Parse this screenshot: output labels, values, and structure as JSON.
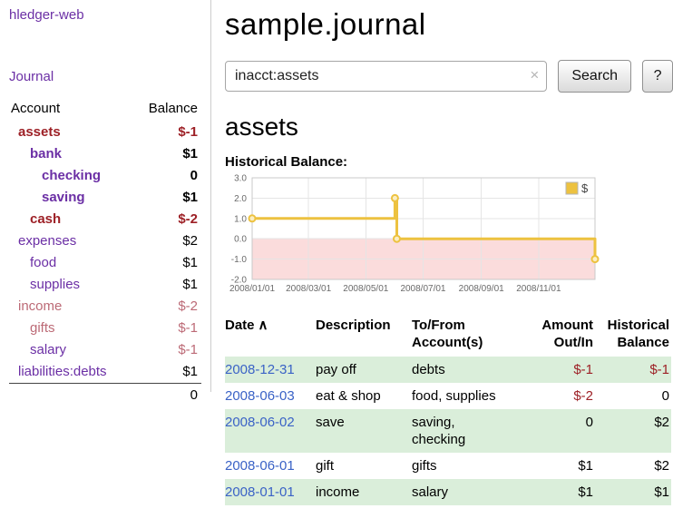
{
  "colors": {
    "accent_purple": "#6b2fa5",
    "negative_red": "#9d2026",
    "negative_rose": "#bc6a76",
    "link_blue": "#3a62c6",
    "stripe_green": "#daeeda",
    "chart_line": "#edc240",
    "chart_negative_region": "#fbdcdc"
  },
  "sidebar": {
    "app_title": "hledger-web",
    "journal_link": "Journal",
    "accounts": {
      "header_account": "Account",
      "header_balance": "Balance",
      "rows": [
        {
          "name": "assets",
          "balance": "$-1",
          "indent": 0,
          "bold": true,
          "name_style": "neg",
          "bal_style": "neg"
        },
        {
          "name": "bank",
          "balance": "$1",
          "indent": 1,
          "bold": true,
          "name_style": "link",
          "bal_style": ""
        },
        {
          "name": "checking",
          "balance": "0",
          "indent": 2,
          "bold": true,
          "name_style": "link",
          "bal_style": ""
        },
        {
          "name": "saving",
          "balance": "$1",
          "indent": 2,
          "bold": true,
          "name_style": "link",
          "bal_style": ""
        },
        {
          "name": "cash",
          "balance": "$-2",
          "indent": 1,
          "bold": true,
          "name_style": "neg",
          "bal_style": "neg"
        },
        {
          "name": "expenses",
          "balance": "$2",
          "indent": 0,
          "bold": false,
          "name_style": "link",
          "bal_style": ""
        },
        {
          "name": "food",
          "balance": "$1",
          "indent": 1,
          "bold": false,
          "name_style": "link",
          "bal_style": ""
        },
        {
          "name": "supplies",
          "balance": "$1",
          "indent": 1,
          "bold": false,
          "name_style": "link",
          "bal_style": ""
        },
        {
          "name": "income",
          "balance": "$-2",
          "indent": 0,
          "bold": false,
          "name_style": "negpale",
          "bal_style": "negpale"
        },
        {
          "name": "gifts",
          "balance": "$-1",
          "indent": 1,
          "bold": false,
          "name_style": "negpale",
          "bal_style": "negpale"
        },
        {
          "name": "salary",
          "balance": "$-1",
          "indent": 1,
          "bold": false,
          "name_style": "link",
          "bal_style": "negpale"
        },
        {
          "name": "liabilities:debts",
          "balance": "$1",
          "indent": 0,
          "bold": false,
          "name_style": "link",
          "bal_style": ""
        }
      ],
      "total": "0"
    }
  },
  "main": {
    "title": "sample.journal",
    "search": {
      "value": "inacct:assets",
      "clear_icon": "×",
      "button_label": "Search",
      "help_label": "?"
    },
    "account_heading": "assets",
    "chart_title": "Historical Balance:"
  },
  "chart_data": {
    "type": "line",
    "step": true,
    "title": "Historical Balance",
    "ylim": [
      -2,
      3
    ],
    "xlim_days": [
      0,
      365
    ],
    "y_ticks": [
      3.0,
      2.0,
      1.0,
      0.0,
      -1.0,
      -2.0
    ],
    "x_ticks": [
      {
        "day": 0,
        "label": "2008/01/01"
      },
      {
        "day": 60,
        "label": "2008/03/01"
      },
      {
        "day": 121,
        "label": "2008/05/01"
      },
      {
        "day": 182,
        "label": "2008/07/01"
      },
      {
        "day": 244,
        "label": "2008/09/01"
      },
      {
        "day": 305,
        "label": "2008/11/01"
      }
    ],
    "negative_region_color": "#fbdcdc",
    "legend_position": "top-right",
    "series": [
      {
        "name": "$",
        "color": "#edc240",
        "points": [
          [
            0,
            1
          ],
          [
            152,
            1
          ],
          [
            152,
            2
          ],
          [
            154,
            2
          ],
          [
            154,
            0
          ],
          [
            365,
            0
          ],
          [
            365,
            -1
          ]
        ],
        "markers": [
          [
            0,
            1
          ],
          [
            152,
            2
          ],
          [
            154,
            0
          ],
          [
            365,
            -1
          ]
        ]
      }
    ]
  },
  "register": {
    "headers": {
      "date": "Date",
      "sort_icon": "∧",
      "description": "Description",
      "account": "To/From Account(s)",
      "amount": "Amount Out/In",
      "balance": "Historical Balance"
    },
    "rows": [
      {
        "date": "2008-12-31",
        "description": "pay off",
        "account_lines": [
          "debts"
        ],
        "amount": "$-1",
        "amount_neg": true,
        "balance": "$-1",
        "balance_neg": true,
        "shade": true
      },
      {
        "date": "2008-06-03",
        "description": "eat & shop",
        "account_lines": [
          "food, supplies"
        ],
        "amount": "$-2",
        "amount_neg": true,
        "balance": "0",
        "balance_neg": false,
        "shade": false
      },
      {
        "date": "2008-06-02",
        "description": "save",
        "account_lines": [
          "saving,",
          "checking"
        ],
        "amount": "0",
        "amount_neg": false,
        "balance": "$2",
        "balance_neg": false,
        "shade": true
      },
      {
        "date": "2008-06-01",
        "description": "gift",
        "account_lines": [
          "gifts"
        ],
        "amount": "$1",
        "amount_neg": false,
        "balance": "$2",
        "balance_neg": false,
        "shade": false
      },
      {
        "date": "2008-01-01",
        "description": "income",
        "account_lines": [
          "salary"
        ],
        "amount": "$1",
        "amount_neg": false,
        "balance": "$1",
        "balance_neg": false,
        "shade": true
      }
    ]
  }
}
